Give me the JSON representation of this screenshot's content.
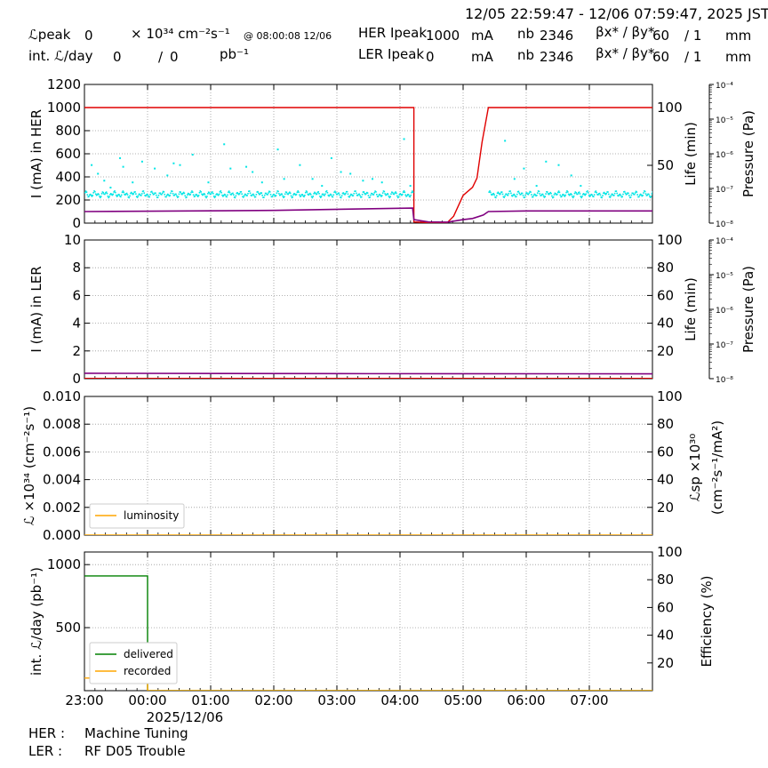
{
  "header": {
    "time_range": "12/05 22:59:47 - 12/06 07:59:47, 2025 JST",
    "lum_peak_label": "ℒpeak",
    "lum_peak_value": "0",
    "lum_peak_unit": "× 10³⁴ cm⁻²s⁻¹",
    "lum_peak_time": "@ 08:00:08 12/06",
    "int_lum_label": "int. ℒ/day",
    "int_lum_value": "0",
    "int_lum_sep": "/",
    "int_lum_value2": "0",
    "int_lum_unit": "pb⁻¹",
    "her_peak_label": "HER Ipeak",
    "her_peak_value": "1000",
    "her_peak_unit": "mA",
    "ler_peak_label": "LER Ipeak",
    "ler_peak_value": "0",
    "ler_peak_unit": "mA",
    "nb_label": "nb",
    "her_nb": "2346",
    "ler_nb": "2346",
    "beta_label": "βx* / βy*",
    "her_beta_x": "60",
    "her_beta_y": "/ 1",
    "ler_beta_x": "60",
    "ler_beta_y": "/ 1",
    "beta_unit": "mm"
  },
  "footer": {
    "her_label": "HER :",
    "her_status": "Machine Tuning",
    "ler_label": "LER :",
    "ler_status": "RF D05 Trouble"
  },
  "colors": {
    "her_current": "#e00000",
    "life": "#800080",
    "pressure": "#00e5e5",
    "luminosity": "#ffa500",
    "delivered": "#008000",
    "recorded": "#ffa500"
  },
  "chart_data": [
    {
      "id": "her",
      "type": "line",
      "ylabel": "I (mA) in HER",
      "ylabel2": "Life (min)",
      "ylabel3": "Pressure (Pa)",
      "ylim": [
        0,
        1200
      ],
      "yticks": [
        "0",
        "200",
        "400",
        "600",
        "800",
        "1000",
        "1200"
      ],
      "y2ticks": [
        "50",
        "100"
      ],
      "y3ticks": [
        "10⁻⁸",
        "10⁻⁷",
        "10⁻⁶",
        "10⁻⁵",
        "10⁻⁴"
      ],
      "series": [
        {
          "key": "current",
          "color": "#e00000",
          "x": [
            0,
            5.22,
            5.22,
            5.43,
            5.75,
            5.85,
            6.0,
            6.15,
            6.22,
            6.3,
            6.4,
            9.0
          ],
          "y": [
            1000,
            1000,
            10,
            5,
            5,
            60,
            240,
            310,
            390,
            700,
            1000,
            1000
          ]
        },
        {
          "key": "life",
          "color": "#800080",
          "x": [
            0,
            3.0,
            5.2,
            5.22,
            5.45,
            5.75,
            6.0,
            6.15,
            6.32,
            6.4,
            7.0,
            9.0
          ],
          "y": [
            10,
            11,
            13,
            3,
            1,
            0.8,
            3,
            4,
            7,
            10,
            10.5,
            10.5
          ]
        },
        {
          "key": "pressure_main_band_log10",
          "color": "#00e5e5",
          "segments": [
            [
              0,
              5.2
            ],
            [
              6.4,
              9.0
            ]
          ],
          "center": -7.15,
          "spread": 0.05
        },
        {
          "key": "pressure_outliers_log10",
          "color": "#00e5e5",
          "x": [
            0.1,
            0.2,
            0.3,
            0.4,
            0.55,
            0.6,
            0.75,
            0.9,
            1.1,
            1.3,
            1.4,
            1.5,
            1.7,
            1.95,
            2.2,
            2.3,
            2.55,
            2.65,
            2.8,
            3.05,
            3.15,
            3.4,
            3.6,
            3.75,
            3.9,
            4.05,
            4.2,
            4.4,
            4.55,
            4.7,
            5.05,
            5.15,
            6.65,
            6.8,
            6.95,
            7.15,
            7.3,
            7.5,
            7.7,
            7.85
          ],
          "y": [
            -6.3,
            -6.55,
            -6.75,
            -6.95,
            -6.1,
            -6.35,
            -6.8,
            -6.2,
            -6.4,
            -6.6,
            -6.25,
            -6.3,
            -6.0,
            -6.8,
            -5.7,
            -6.4,
            -6.35,
            -6.5,
            -6.8,
            -5.85,
            -6.7,
            -6.3,
            -6.7,
            -6.9,
            -6.1,
            -6.5,
            -6.55,
            -6.75,
            -6.7,
            -6.8,
            -5.55,
            -6.9,
            -5.6,
            -6.7,
            -6.4,
            -6.9,
            -6.2,
            -6.3,
            -6.6,
            -6.9
          ]
        }
      ]
    },
    {
      "id": "ler",
      "type": "line",
      "ylabel": "I (mA) in LER",
      "ylabel2": "Life (min)",
      "ylabel3": "Pressure (Pa)",
      "ylim": [
        0,
        10
      ],
      "yticks": [
        "0",
        "2",
        "4",
        "6",
        "8",
        "10"
      ],
      "y2ticks": [
        "20",
        "40",
        "60",
        "80",
        "100"
      ],
      "y3ticks": [
        "10⁻⁸",
        "10⁻⁷",
        "10⁻⁶",
        "10⁻⁵",
        "10⁻⁴"
      ],
      "series": [
        {
          "key": "current",
          "color": "#e00000",
          "x": [
            0,
            9.0
          ],
          "y": [
            0.02,
            0.02
          ]
        },
        {
          "key": "life",
          "color": "#800080",
          "x": [
            0,
            0.5,
            4.5,
            9.0
          ],
          "y": [
            3.9,
            3.85,
            3.6,
            3.5
          ]
        }
      ]
    },
    {
      "id": "lumi",
      "type": "line",
      "ylabel": "ℒ ×10³⁴ (cm⁻²s⁻¹)",
      "ylabel2": "ℒsp ×10³⁰",
      "ylabel2b": "(cm⁻²s⁻¹/mA²)",
      "ylim": [
        0,
        0.01
      ],
      "yticks": [
        "0.000",
        "0.002",
        "0.004",
        "0.006",
        "0.008",
        "0.010"
      ],
      "y2ticks": [
        "20",
        "40",
        "60",
        "80",
        "100"
      ],
      "legend": [
        "luminosity"
      ],
      "legend_position": "lower-left",
      "series": [
        {
          "name": "luminosity",
          "color": "#ffa500",
          "x": [
            0,
            9.0
          ],
          "y": [
            0,
            0
          ]
        }
      ]
    },
    {
      "id": "intlumi",
      "type": "line",
      "ylabel": "int. ℒ/day (pb⁻¹)",
      "ylabel2": "Efficiency (%)",
      "ylim": [
        0,
        1100
      ],
      "yticks": [
        "500",
        "1000"
      ],
      "y2ticks": [
        "20",
        "40",
        "60",
        "80",
        "100"
      ],
      "legend": [
        "delivered",
        "recorded"
      ],
      "legend_position": "lower-left",
      "series": [
        {
          "name": "delivered",
          "color": "#008000",
          "x": [
            0,
            1.0,
            1.0,
            9.0
          ],
          "y": [
            910,
            910,
            0,
            0
          ]
        },
        {
          "name": "recorded",
          "color": "#ffa500",
          "x": [
            0,
            1.0,
            1.0,
            9.0
          ],
          "y": [
            100,
            100,
            0,
            0
          ]
        }
      ]
    }
  ],
  "x_axis": {
    "range_hours": [
      0,
      9.0
    ],
    "ticks": [
      "23:00",
      "00:00",
      "01:00",
      "02:00",
      "03:00",
      "04:00",
      "05:00",
      "06:00",
      "07:00"
    ],
    "date_label": "2025/12/06"
  }
}
